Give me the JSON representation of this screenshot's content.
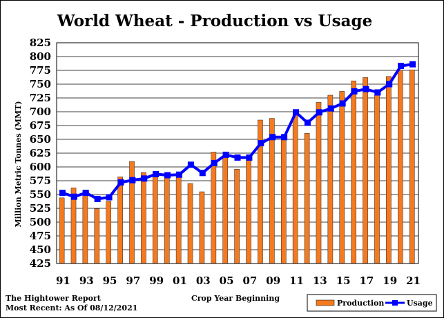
{
  "chart_data": {
    "type": "bar+line",
    "title": "World Wheat - Production vs Usage",
    "xlabel": "Crop Year Beginning",
    "ylabel": "Million Metric Tonnes (MMT)",
    "ylim": [
      425,
      825
    ],
    "yticks": [
      425,
      450,
      475,
      500,
      525,
      550,
      575,
      600,
      625,
      650,
      675,
      700,
      725,
      750,
      775,
      800,
      825
    ],
    "grid": true,
    "legend_position": "bottom-right",
    "categories": [
      "91",
      "92",
      "93",
      "94",
      "95",
      "96",
      "97",
      "98",
      "99",
      "00",
      "01",
      "02",
      "03",
      "04",
      "05",
      "06",
      "07",
      "08",
      "09",
      "10",
      "11",
      "12",
      "13",
      "14",
      "15",
      "16",
      "17",
      "18",
      "19",
      "20",
      "21"
    ],
    "xtick_labels": [
      "91",
      "93",
      "95",
      "97",
      "99",
      "01",
      "03",
      "05",
      "07",
      "09",
      "11",
      "13",
      "15",
      "17",
      "19",
      "21"
    ],
    "series": [
      {
        "name": "Production",
        "kind": "bar",
        "color": "#F47A20",
        "values": [
          544,
          562,
          558,
          524,
          538,
          582,
          610,
          590,
          589,
          583,
          583,
          570,
          555,
          627,
          619,
          596,
          612,
          685,
          688,
          652,
          695,
          661,
          717,
          730,
          737,
          756,
          762,
          731,
          764,
          775,
          776
        ]
      },
      {
        "name": "Usage",
        "kind": "line",
        "color": "#0000FF",
        "values": [
          553,
          546,
          553,
          542,
          545,
          572,
          576,
          579,
          587,
          585,
          586,
          604,
          589,
          607,
          622,
          617,
          617,
          643,
          654,
          654,
          699,
          680,
          699,
          706,
          715,
          737,
          741,
          735,
          750,
          783,
          786
        ]
      }
    ]
  },
  "footer": {
    "source": "The Hightower Report",
    "as_of": "Most Recent: As Of 08/12/2021"
  },
  "legend": {
    "production_label": "Production",
    "usage_label": "Usage"
  }
}
